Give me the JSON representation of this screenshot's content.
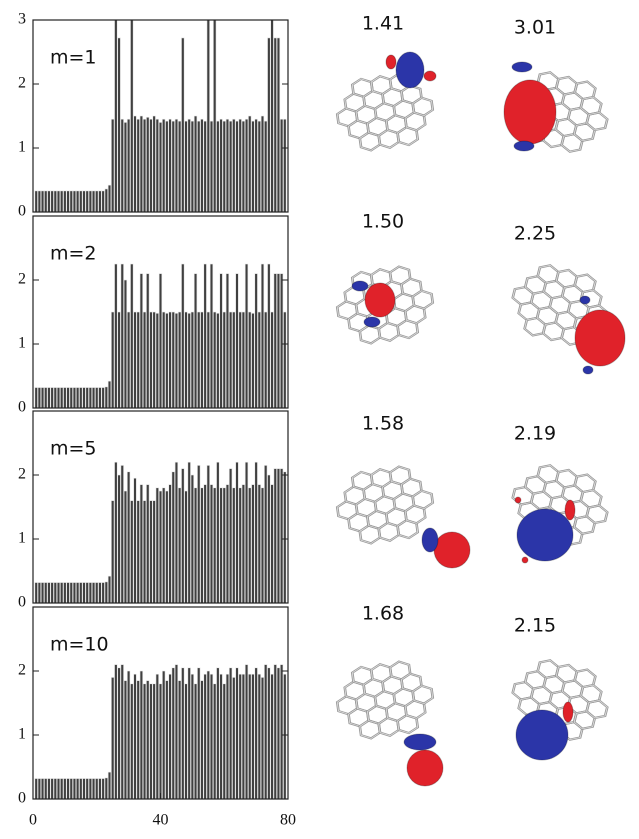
{
  "chart_data": [
    {
      "type": "bar",
      "annotation": "m=1",
      "color": "#404040",
      "xlim": [
        0,
        80
      ],
      "ylim": [
        0,
        3
      ],
      "yticks": [
        0,
        1,
        2,
        3
      ],
      "x": [
        1,
        2,
        3,
        4,
        5,
        6,
        7,
        8,
        9,
        10,
        11,
        12,
        13,
        14,
        15,
        16,
        17,
        18,
        19,
        20,
        21,
        22,
        23,
        24,
        25,
        26,
        27,
        28,
        29,
        30,
        31,
        32,
        33,
        34,
        35,
        36,
        37,
        38,
        39,
        40,
        41,
        42,
        43,
        44,
        45,
        46,
        47,
        48,
        49,
        50,
        51,
        52,
        53,
        54,
        55,
        56,
        57,
        58,
        59,
        60,
        61,
        62,
        63,
        64,
        65,
        66,
        67,
        68,
        69,
        70,
        71,
        72,
        73,
        74,
        75,
        76,
        77,
        78,
        79
      ],
      "values": [
        0.33,
        0.33,
        0.33,
        0.33,
        0.33,
        0.33,
        0.33,
        0.33,
        0.33,
        0.33,
        0.33,
        0.33,
        0.33,
        0.33,
        0.33,
        0.33,
        0.33,
        0.33,
        0.33,
        0.33,
        0.33,
        0.33,
        0.36,
        0.42,
        1.45,
        3,
        2.72,
        1.45,
        1.4,
        1.45,
        3,
        1.5,
        1.45,
        1.5,
        1.45,
        1.48,
        1.45,
        1.5,
        1.45,
        1.4,
        1.45,
        1.42,
        1.45,
        1.42,
        1.45,
        1.42,
        2.72,
        1.42,
        1.45,
        1.42,
        1.5,
        1.42,
        1.45,
        1.42,
        3,
        1.42,
        3,
        1.42,
        1.45,
        1.42,
        1.45,
        1.42,
        1.45,
        1.42,
        1.45,
        1.42,
        1.45,
        1.5,
        1.42,
        1.45,
        1.42,
        1.5,
        1.42,
        2.72,
        3,
        2.72,
        2.72,
        1.45,
        1.45
      ]
    },
    {
      "type": "bar",
      "annotation": "m=2",
      "color": "#404040",
      "xlim": [
        0,
        80
      ],
      "ylim": [
        0,
        3
      ],
      "yticks": [
        0,
        1,
        2
      ],
      "x": [
        1,
        2,
        3,
        4,
        5,
        6,
        7,
        8,
        9,
        10,
        11,
        12,
        13,
        14,
        15,
        16,
        17,
        18,
        19,
        20,
        21,
        22,
        23,
        24,
        25,
        26,
        27,
        28,
        29,
        30,
        31,
        32,
        33,
        34,
        35,
        36,
        37,
        38,
        39,
        40,
        41,
        42,
        43,
        44,
        45,
        46,
        47,
        48,
        49,
        50,
        51,
        52,
        53,
        54,
        55,
        56,
        57,
        58,
        59,
        60,
        61,
        62,
        63,
        64,
        65,
        66,
        67,
        68,
        69,
        70,
        71,
        72,
        73,
        74,
        75,
        76,
        77,
        78,
        79
      ],
      "values": [
        0.32,
        0.32,
        0.32,
        0.32,
        0.32,
        0.32,
        0.32,
        0.32,
        0.32,
        0.32,
        0.32,
        0.32,
        0.32,
        0.32,
        0.32,
        0.32,
        0.32,
        0.32,
        0.32,
        0.32,
        0.32,
        0.32,
        0.33,
        0.42,
        1.5,
        2.25,
        1.5,
        2.25,
        2.0,
        1.5,
        2.25,
        1.5,
        1.5,
        2.1,
        1.5,
        2.1,
        1.5,
        1.5,
        1.48,
        2.1,
        1.5,
        1.48,
        1.5,
        1.5,
        1.48,
        1.5,
        2.25,
        1.5,
        1.48,
        1.5,
        2.1,
        1.5,
        1.5,
        2.25,
        1.5,
        2.25,
        1.5,
        1.48,
        2.1,
        1.5,
        2.1,
        1.5,
        1.5,
        2.1,
        1.5,
        1.5,
        2.25,
        1.5,
        1.48,
        2.1,
        1.5,
        2.25,
        1.5,
        2.25,
        1.5,
        2.1,
        2.1,
        2.1,
        1.5
      ]
    },
    {
      "type": "bar",
      "annotation": "m=5",
      "color": "#404040",
      "xlim": [
        0,
        80
      ],
      "ylim": [
        0,
        3
      ],
      "yticks": [
        0,
        1,
        2
      ],
      "x": [
        1,
        2,
        3,
        4,
        5,
        6,
        7,
        8,
        9,
        10,
        11,
        12,
        13,
        14,
        15,
        16,
        17,
        18,
        19,
        20,
        21,
        22,
        23,
        24,
        25,
        26,
        27,
        28,
        29,
        30,
        31,
        32,
        33,
        34,
        35,
        36,
        37,
        38,
        39,
        40,
        41,
        42,
        43,
        44,
        45,
        46,
        47,
        48,
        49,
        50,
        51,
        52,
        53,
        54,
        55,
        56,
        57,
        58,
        59,
        60,
        61,
        62,
        63,
        64,
        65,
        66,
        67,
        68,
        69,
        70,
        71,
        72,
        73,
        74,
        75,
        76,
        77,
        78,
        79
      ],
      "values": [
        0.32,
        0.32,
        0.32,
        0.32,
        0.32,
        0.32,
        0.32,
        0.32,
        0.32,
        0.32,
        0.32,
        0.32,
        0.32,
        0.32,
        0.32,
        0.32,
        0.32,
        0.32,
        0.32,
        0.32,
        0.32,
        0.32,
        0.33,
        0.42,
        1.6,
        2.2,
        2.0,
        2.15,
        1.75,
        2.05,
        1.6,
        1.95,
        1.6,
        1.85,
        1.6,
        1.85,
        1.6,
        1.6,
        1.8,
        1.75,
        1.8,
        1.75,
        1.85,
        2.05,
        2.2,
        1.8,
        2.1,
        1.75,
        2.2,
        2.0,
        1.8,
        2.15,
        1.8,
        1.85,
        2.15,
        1.85,
        1.8,
        2.2,
        1.8,
        1.8,
        1.85,
        2.1,
        1.8,
        2.2,
        1.8,
        1.85,
        2.2,
        1.8,
        1.85,
        2.2,
        1.85,
        1.8,
        2.15,
        2.0,
        1.85,
        2.1,
        2.1,
        2.1,
        2.05
      ]
    },
    {
      "type": "bar",
      "annotation": "m=10",
      "color": "#404040",
      "xlim": [
        0,
        80
      ],
      "ylim": [
        0,
        3
      ],
      "yticks": [
        0,
        1,
        2
      ],
      "xticks": [
        0,
        40,
        80
      ],
      "x": [
        1,
        2,
        3,
        4,
        5,
        6,
        7,
        8,
        9,
        10,
        11,
        12,
        13,
        14,
        15,
        16,
        17,
        18,
        19,
        20,
        21,
        22,
        23,
        24,
        25,
        26,
        27,
        28,
        29,
        30,
        31,
        32,
        33,
        34,
        35,
        36,
        37,
        38,
        39,
        40,
        41,
        42,
        43,
        44,
        45,
        46,
        47,
        48,
        49,
        50,
        51,
        52,
        53,
        54,
        55,
        56,
        57,
        58,
        59,
        60,
        61,
        62,
        63,
        64,
        65,
        66,
        67,
        68,
        69,
        70,
        71,
        72,
        73,
        74,
        75,
        76,
        77,
        78,
        79
      ],
      "values": [
        0.32,
        0.32,
        0.32,
        0.32,
        0.32,
        0.32,
        0.32,
        0.32,
        0.32,
        0.32,
        0.32,
        0.32,
        0.32,
        0.32,
        0.32,
        0.32,
        0.32,
        0.32,
        0.32,
        0.32,
        0.32,
        0.32,
        0.33,
        0.42,
        1.9,
        2.1,
        2.05,
        2.1,
        1.85,
        2.0,
        1.8,
        1.95,
        1.85,
        2.0,
        1.8,
        1.85,
        1.8,
        1.8,
        1.95,
        1.8,
        2.0,
        1.85,
        1.95,
        2.05,
        2.1,
        1.85,
        2.05,
        1.8,
        2.05,
        1.95,
        1.8,
        2.05,
        1.85,
        1.95,
        2.0,
        1.95,
        1.8,
        2.05,
        1.95,
        1.8,
        1.95,
        2.05,
        1.9,
        2.05,
        1.95,
        1.95,
        2.1,
        1.95,
        1.95,
        2.05,
        1.95,
        1.9,
        2.1,
        2.05,
        1.95,
        2.1,
        2.05,
        2.1,
        1.95
      ]
    }
  ],
  "isosurfaces": {
    "labels": [
      [
        "1.41",
        "3.01"
      ],
      [
        "1.50",
        "2.25"
      ],
      [
        "1.58",
        "2.19"
      ],
      [
        "1.68",
        "2.15"
      ]
    ]
  }
}
